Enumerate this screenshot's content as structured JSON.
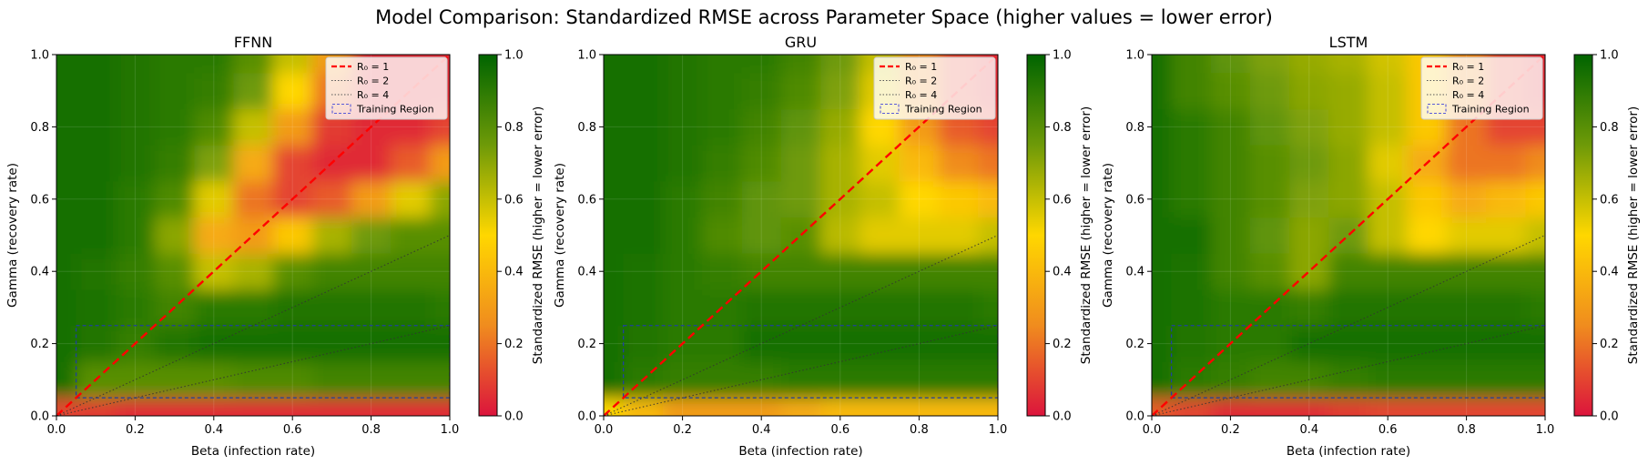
{
  "suptitle": "Model Comparison: Standardized RMSE across Parameter Space (higher values = lower error)",
  "colors": {
    "low": "#dc143c",
    "mid_low": "#f08c1e",
    "mid": "#ffd700",
    "mid_high": "#6e9a08",
    "high": "#006400",
    "r0_1": "#ff0000",
    "r0_2": "#333333",
    "r0_4": "#333333",
    "training": "#1f3f9f",
    "legend_training": "#5a5ad8"
  },
  "chart_data": [
    {
      "type": "heatmap",
      "title": "FFNN",
      "xlabel": "Beta (infection rate)",
      "ylabel": "Gamma (recovery rate)",
      "xlim": [
        0,
        1
      ],
      "ylim": [
        0,
        1
      ],
      "x_ticks": [
        "0.0",
        "0.2",
        "0.4",
        "0.6",
        "0.8",
        "1.0"
      ],
      "y_ticks": [
        "0.0",
        "0.2",
        "0.4",
        "0.6",
        "0.8",
        "1.0"
      ],
      "colorbar": {
        "label": "Standardized RMSE (higher = lower error)",
        "range": [
          0,
          1
        ],
        "ticks": [
          "0.0",
          "0.2",
          "0.4",
          "0.6",
          "0.8",
          "1.0"
        ]
      },
      "legend": {
        "position": "top-right",
        "entries": [
          "R₀ = 1",
          "R₀ = 2",
          "R₀ = 4",
          "Training Region"
        ]
      },
      "lines": [
        {
          "name": "R₀ = 1",
          "style": "dashed",
          "points": [
            [
              0,
              0
            ],
            [
              1,
              1
            ]
          ]
        },
        {
          "name": "R₀ = 2",
          "style": "dotted",
          "points": [
            [
              0,
              0
            ],
            [
              1,
              0.5
            ]
          ]
        },
        {
          "name": "R₀ = 4",
          "style": "dotted",
          "points": [
            [
              0,
              0
            ],
            [
              1,
              0.25
            ]
          ]
        }
      ],
      "training_region": {
        "beta": [
          0.05,
          1.0
        ],
        "gamma": [
          0.05,
          0.25
        ]
      },
      "grid_x": [
        0,
        0.1,
        0.2,
        0.3,
        0.4,
        0.5,
        0.6,
        0.7,
        0.8,
        0.9,
        1.0
      ],
      "grid_y": [
        0,
        0.1,
        0.2,
        0.3,
        0.4,
        0.5,
        0.6,
        0.7,
        0.8,
        0.9,
        1.0
      ],
      "z": [
        [
          0.1,
          0.08,
          0.05,
          0.05,
          0.05,
          0.05,
          0.05,
          0.05,
          0.05,
          0.05,
          0.05
        ],
        [
          0.95,
          0.8,
          0.8,
          0.8,
          0.8,
          0.82,
          0.82,
          0.85,
          0.85,
          0.85,
          0.85
        ],
        [
          0.95,
          0.92,
          0.88,
          0.92,
          0.95,
          0.95,
          0.95,
          0.95,
          0.95,
          0.95,
          0.95
        ],
        [
          0.95,
          0.93,
          0.9,
          0.85,
          0.9,
          0.9,
          0.92,
          0.92,
          0.92,
          0.92,
          0.9
        ],
        [
          0.95,
          0.92,
          0.88,
          0.8,
          0.6,
          0.65,
          0.8,
          0.85,
          0.85,
          0.85,
          0.85
        ],
        [
          0.95,
          0.95,
          0.9,
          0.7,
          0.35,
          0.3,
          0.45,
          0.65,
          0.75,
          0.8,
          0.8
        ],
        [
          0.95,
          0.95,
          0.9,
          0.82,
          0.55,
          0.2,
          0.1,
          0.15,
          0.3,
          0.55,
          0.7
        ],
        [
          0.95,
          0.95,
          0.92,
          0.88,
          0.72,
          0.35,
          0.1,
          0.05,
          0.05,
          0.15,
          0.3
        ],
        [
          0.95,
          0.95,
          0.92,
          0.9,
          0.82,
          0.6,
          0.3,
          0.08,
          0.05,
          0.05,
          0.1
        ],
        [
          0.95,
          0.95,
          0.92,
          0.9,
          0.88,
          0.75,
          0.5,
          0.2,
          0.05,
          0.05,
          0.05
        ],
        [
          0.95,
          0.95,
          0.92,
          0.9,
          0.9,
          0.8,
          0.6,
          0.3,
          0.05,
          0.05,
          0.05
        ]
      ]
    },
    {
      "type": "heatmap",
      "title": "GRU",
      "xlabel": "Beta (infection rate)",
      "ylabel": "Gamma (recovery rate)",
      "xlim": [
        0,
        1
      ],
      "ylim": [
        0,
        1
      ],
      "x_ticks": [
        "0.0",
        "0.2",
        "0.4",
        "0.6",
        "0.8",
        "1.0"
      ],
      "y_ticks": [
        "0.0",
        "0.2",
        "0.4",
        "0.6",
        "0.8",
        "1.0"
      ],
      "colorbar": {
        "label": "Standardized RMSE (higher = lower error)",
        "range": [
          0,
          1
        ],
        "ticks": [
          "0.0",
          "0.2",
          "0.4",
          "0.6",
          "0.8",
          "1.0"
        ]
      },
      "legend": {
        "position": "top-right",
        "entries": [
          "R₀ = 1",
          "R₀ = 2",
          "R₀ = 4",
          "Training Region"
        ]
      },
      "lines": [
        {
          "name": "R₀ = 1",
          "style": "dashed",
          "points": [
            [
              0,
              0
            ],
            [
              1,
              1
            ]
          ]
        },
        {
          "name": "R₀ = 2",
          "style": "dotted",
          "points": [
            [
              0,
              0
            ],
            [
              1,
              0.5
            ]
          ]
        },
        {
          "name": "R₀ = 4",
          "style": "dotted",
          "points": [
            [
              0,
              0
            ],
            [
              1,
              0.25
            ]
          ]
        }
      ],
      "training_region": {
        "beta": [
          0.05,
          1.0
        ],
        "gamma": [
          0.05,
          0.25
        ]
      },
      "grid_x": [
        0,
        0.1,
        0.2,
        0.3,
        0.4,
        0.5,
        0.6,
        0.7,
        0.8,
        0.9,
        1.0
      ],
      "grid_y": [
        0,
        0.1,
        0.2,
        0.3,
        0.4,
        0.5,
        0.6,
        0.7,
        0.8,
        0.9,
        1.0
      ],
      "z": [
        [
          0.5,
          0.4,
          0.3,
          0.3,
          0.3,
          0.35,
          0.4,
          0.4,
          0.4,
          0.4,
          0.4
        ],
        [
          0.95,
          0.9,
          0.88,
          0.88,
          0.88,
          0.9,
          0.9,
          0.9,
          0.9,
          0.9,
          0.9
        ],
        [
          0.95,
          0.92,
          0.9,
          0.9,
          0.95,
          0.95,
          0.95,
          0.95,
          0.95,
          0.95,
          0.95
        ],
        [
          0.95,
          0.93,
          0.9,
          0.9,
          0.92,
          0.92,
          0.92,
          0.92,
          0.92,
          0.92,
          0.9
        ],
        [
          0.95,
          0.93,
          0.9,
          0.88,
          0.85,
          0.85,
          0.85,
          0.85,
          0.85,
          0.85,
          0.85
        ],
        [
          0.95,
          0.95,
          0.9,
          0.82,
          0.78,
          0.8,
          0.62,
          0.55,
          0.55,
          0.55,
          0.6
        ],
        [
          0.95,
          0.95,
          0.9,
          0.85,
          0.78,
          0.75,
          0.65,
          0.6,
          0.5,
          0.45,
          0.4
        ],
        [
          0.95,
          0.95,
          0.92,
          0.88,
          0.82,
          0.75,
          0.65,
          0.55,
          0.4,
          0.25,
          0.2
        ],
        [
          0.95,
          0.95,
          0.92,
          0.9,
          0.85,
          0.78,
          0.68,
          0.5,
          0.3,
          0.15,
          0.1
        ],
        [
          0.95,
          0.95,
          0.92,
          0.9,
          0.88,
          0.82,
          0.72,
          0.55,
          0.25,
          0.1,
          0.05
        ],
        [
          0.95,
          0.95,
          0.92,
          0.9,
          0.9,
          0.85,
          0.75,
          0.6,
          0.25,
          0.1,
          0.05
        ]
      ]
    },
    {
      "type": "heatmap",
      "title": "LSTM",
      "xlabel": "Beta (infection rate)",
      "ylabel": "Gamma (recovery rate)",
      "xlim": [
        0,
        1
      ],
      "ylim": [
        0,
        1
      ],
      "x_ticks": [
        "0.0",
        "0.2",
        "0.4",
        "0.6",
        "0.8",
        "1.0"
      ],
      "y_ticks": [
        "0.0",
        "0.2",
        "0.4",
        "0.6",
        "0.8",
        "1.0"
      ],
      "colorbar": {
        "label": "Standardized RMSE (higher = lower error)",
        "range": [
          0,
          1
        ],
        "ticks": [
          "0.0",
          "0.2",
          "0.4",
          "0.6",
          "0.8",
          "1.0"
        ]
      },
      "legend": {
        "position": "top-right",
        "entries": [
          "R₀ = 1",
          "R₀ = 2",
          "R₀ = 4",
          "Training Region"
        ]
      },
      "lines": [
        {
          "name": "R₀ = 1",
          "style": "dashed",
          "points": [
            [
              0,
              0
            ],
            [
              1,
              1
            ]
          ]
        },
        {
          "name": "R₀ = 2",
          "style": "dotted",
          "points": [
            [
              0,
              0
            ],
            [
              1,
              0.5
            ]
          ]
        },
        {
          "name": "R₀ = 4",
          "style": "dotted",
          "points": [
            [
              0,
              0
            ],
            [
              1,
              0.25
            ]
          ]
        }
      ],
      "training_region": {
        "beta": [
          0.05,
          1.0
        ],
        "gamma": [
          0.05,
          0.25
        ]
      },
      "grid_x": [
        0,
        0.1,
        0.2,
        0.3,
        0.4,
        0.5,
        0.6,
        0.7,
        0.8,
        0.9,
        1.0
      ],
      "grid_y": [
        0,
        0.1,
        0.2,
        0.3,
        0.4,
        0.5,
        0.6,
        0.7,
        0.8,
        0.9,
        1.0
      ],
      "z": [
        [
          0.15,
          0.1,
          0.05,
          0.05,
          0.05,
          0.08,
          0.1,
          0.1,
          0.1,
          0.1,
          0.1
        ],
        [
          0.95,
          0.9,
          0.88,
          0.85,
          0.85,
          0.88,
          0.9,
          0.9,
          0.9,
          0.9,
          0.9
        ],
        [
          0.95,
          0.92,
          0.9,
          0.9,
          0.95,
          0.95,
          0.95,
          0.95,
          0.95,
          0.95,
          0.95
        ],
        [
          0.95,
          0.93,
          0.9,
          0.9,
          0.88,
          0.92,
          0.92,
          0.92,
          0.92,
          0.92,
          0.9
        ],
        [
          0.95,
          0.93,
          0.85,
          0.8,
          0.7,
          0.85,
          0.85,
          0.85,
          0.85,
          0.85,
          0.85
        ],
        [
          0.95,
          0.95,
          0.85,
          0.78,
          0.7,
          0.75,
          0.6,
          0.5,
          0.55,
          0.55,
          0.6
        ],
        [
          0.95,
          0.9,
          0.85,
          0.8,
          0.72,
          0.7,
          0.6,
          0.45,
          0.35,
          0.4,
          0.45
        ],
        [
          0.95,
          0.9,
          0.85,
          0.8,
          0.75,
          0.7,
          0.55,
          0.35,
          0.2,
          0.2,
          0.25
        ],
        [
          0.95,
          0.9,
          0.85,
          0.78,
          0.72,
          0.68,
          0.6,
          0.45,
          0.2,
          0.1,
          0.1
        ],
        [
          0.95,
          0.85,
          0.8,
          0.75,
          0.7,
          0.68,
          0.6,
          0.45,
          0.25,
          0.1,
          0.05
        ],
        [
          0.95,
          0.85,
          0.78,
          0.72,
          0.68,
          0.65,
          0.58,
          0.45,
          0.25,
          0.1,
          0.05
        ]
      ]
    }
  ]
}
